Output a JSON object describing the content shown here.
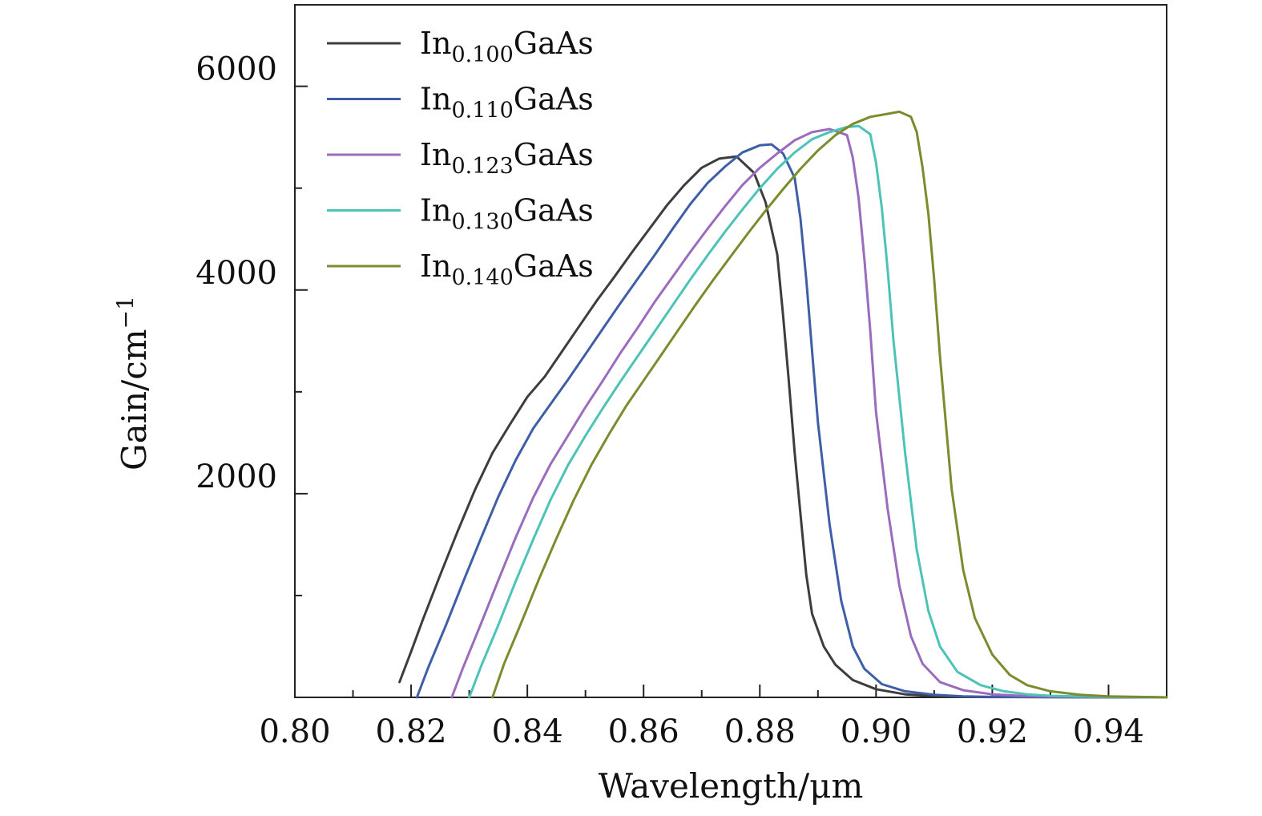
{
  "chart_data": {
    "type": "line",
    "xlabel": "Wavelength/μm",
    "ylabel": "Gain/cm",
    "ylabel_superscript": "−1",
    "xlim": [
      0.8,
      0.95
    ],
    "ylim": [
      0,
      6800
    ],
    "x_ticks": [
      "0.80",
      "0.82",
      "0.84",
      "0.86",
      "0.88",
      "0.90",
      "0.92",
      "0.94"
    ],
    "x_tick_values": [
      0.8,
      0.82,
      0.84,
      0.86,
      0.88,
      0.9,
      0.92,
      0.94
    ],
    "x_minor_tick_values": [
      0.81,
      0.83,
      0.85,
      0.87,
      0.89,
      0.91,
      0.93
    ],
    "y_ticks": [
      "2000",
      "4000",
      "6000"
    ],
    "y_tick_values": [
      2000,
      4000,
      6000
    ],
    "y_minor_tick_values": [
      1000,
      3000,
      5000
    ],
    "grid": false,
    "legend_position": "top-left",
    "series": [
      {
        "name": "In0.100GaAs",
        "name_base": "In",
        "name_sub": "0.100",
        "name_tail": "GaAs",
        "color": "#3d3d3d",
        "x": [
          0.818,
          0.82,
          0.822,
          0.825,
          0.828,
          0.831,
          0.834,
          0.837,
          0.84,
          0.843,
          0.846,
          0.849,
          0.852,
          0.855,
          0.858,
          0.861,
          0.864,
          0.867,
          0.87,
          0.873,
          0.876,
          0.879,
          0.881,
          0.883,
          0.884,
          0.885,
          0.886,
          0.887,
          0.888,
          0.889,
          0.891,
          0.893,
          0.896,
          0.9,
          0.905,
          0.91,
          0.915,
          0.92,
          0.93,
          0.94,
          0.95
        ],
        "y": [
          150,
          450,
          760,
          1200,
          1630,
          2040,
          2400,
          2680,
          2950,
          3150,
          3400,
          3650,
          3900,
          4130,
          4370,
          4600,
          4830,
          5030,
          5200,
          5290,
          5310,
          5150,
          4860,
          4350,
          3750,
          3100,
          2400,
          1800,
          1200,
          820,
          500,
          320,
          170,
          80,
          30,
          12,
          5,
          3,
          2,
          1,
          0
        ]
      },
      {
        "name": "In0.110GaAs",
        "name_base": "In",
        "name_sub": "0.110",
        "name_tail": "GaAs",
        "color": "#3e5ea8",
        "x": [
          0.821,
          0.823,
          0.826,
          0.829,
          0.832,
          0.835,
          0.838,
          0.841,
          0.844,
          0.847,
          0.85,
          0.853,
          0.856,
          0.859,
          0.862,
          0.865,
          0.868,
          0.871,
          0.874,
          0.877,
          0.88,
          0.882,
          0.884,
          0.886,
          0.887,
          0.888,
          0.889,
          0.89,
          0.892,
          0.894,
          0.896,
          0.898,
          0.901,
          0.905,
          0.91,
          0.915,
          0.92,
          0.93,
          0.94,
          0.95
        ],
        "y": [
          0,
          300,
          710,
          1140,
          1560,
          1970,
          2330,
          2640,
          2880,
          3120,
          3370,
          3620,
          3870,
          4110,
          4350,
          4600,
          4840,
          5050,
          5210,
          5350,
          5420,
          5430,
          5340,
          5100,
          4700,
          4100,
          3400,
          2700,
          1700,
          950,
          500,
          280,
          130,
          60,
          25,
          10,
          5,
          3,
          1,
          0
        ]
      },
      {
        "name": "In0.123GaAs",
        "name_base": "In",
        "name_sub": "0.123",
        "name_tail": "GaAs",
        "color": "#9b6bbd",
        "x": [
          0.827,
          0.829,
          0.832,
          0.835,
          0.838,
          0.841,
          0.844,
          0.847,
          0.85,
          0.853,
          0.856,
          0.859,
          0.862,
          0.865,
          0.868,
          0.871,
          0.874,
          0.877,
          0.88,
          0.883,
          0.886,
          0.889,
          0.892,
          0.895,
          0.896,
          0.897,
          0.898,
          0.899,
          0.9,
          0.902,
          0.904,
          0.906,
          0.908,
          0.911,
          0.915,
          0.92,
          0.925,
          0.93,
          0.94,
          0.95
        ],
        "y": [
          0,
          300,
          720,
          1150,
          1570,
          1960,
          2290,
          2570,
          2850,
          3110,
          3380,
          3630,
          3890,
          4130,
          4370,
          4600,
          4820,
          5030,
          5200,
          5340,
          5470,
          5550,
          5580,
          5520,
          5300,
          4900,
          4300,
          3600,
          2800,
          1850,
          1100,
          600,
          330,
          150,
          70,
          30,
          15,
          8,
          3,
          0
        ]
      },
      {
        "name": "In0.130GaAs",
        "name_base": "In",
        "name_sub": "0.130",
        "name_tail": "GaAs",
        "color": "#4cc3b6",
        "x": [
          0.83,
          0.832,
          0.835,
          0.838,
          0.841,
          0.844,
          0.847,
          0.85,
          0.853,
          0.856,
          0.859,
          0.862,
          0.865,
          0.868,
          0.871,
          0.874,
          0.877,
          0.88,
          0.883,
          0.886,
          0.889,
          0.892,
          0.895,
          0.897,
          0.899,
          0.9,
          0.901,
          0.902,
          0.903,
          0.905,
          0.907,
          0.909,
          0.911,
          0.914,
          0.918,
          0.922,
          0.926,
          0.93,
          0.94,
          0.95
        ],
        "y": [
          0,
          300,
          710,
          1140,
          1550,
          1940,
          2280,
          2570,
          2840,
          3100,
          3350,
          3600,
          3850,
          4100,
          4340,
          4570,
          4790,
          5000,
          5190,
          5350,
          5480,
          5550,
          5600,
          5610,
          5530,
          5250,
          4800,
          4200,
          3500,
          2400,
          1450,
          850,
          500,
          250,
          120,
          60,
          30,
          15,
          5,
          0
        ]
      },
      {
        "name": "In0.140GaAs",
        "name_base": "In",
        "name_sub": "0.140",
        "name_tail": "GaAs",
        "color": "#7a8c2d",
        "x": [
          0.834,
          0.836,
          0.839,
          0.842,
          0.845,
          0.848,
          0.851,
          0.854,
          0.857,
          0.86,
          0.863,
          0.866,
          0.869,
          0.872,
          0.875,
          0.878,
          0.881,
          0.884,
          0.887,
          0.89,
          0.893,
          0.896,
          0.899,
          0.902,
          0.904,
          0.906,
          0.907,
          0.908,
          0.909,
          0.91,
          0.911,
          0.913,
          0.915,
          0.917,
          0.92,
          0.923,
          0.926,
          0.93,
          0.935,
          0.94,
          0.945,
          0.95
        ],
        "y": [
          0,
          330,
          740,
          1160,
          1560,
          1940,
          2280,
          2580,
          2860,
          3110,
          3360,
          3610,
          3860,
          4100,
          4330,
          4560,
          4780,
          4990,
          5190,
          5370,
          5520,
          5630,
          5700,
          5730,
          5750,
          5700,
          5550,
          5200,
          4750,
          4100,
          3350,
          2050,
          1250,
          780,
          420,
          220,
          120,
          60,
          25,
          10,
          5,
          0
        ]
      }
    ]
  }
}
